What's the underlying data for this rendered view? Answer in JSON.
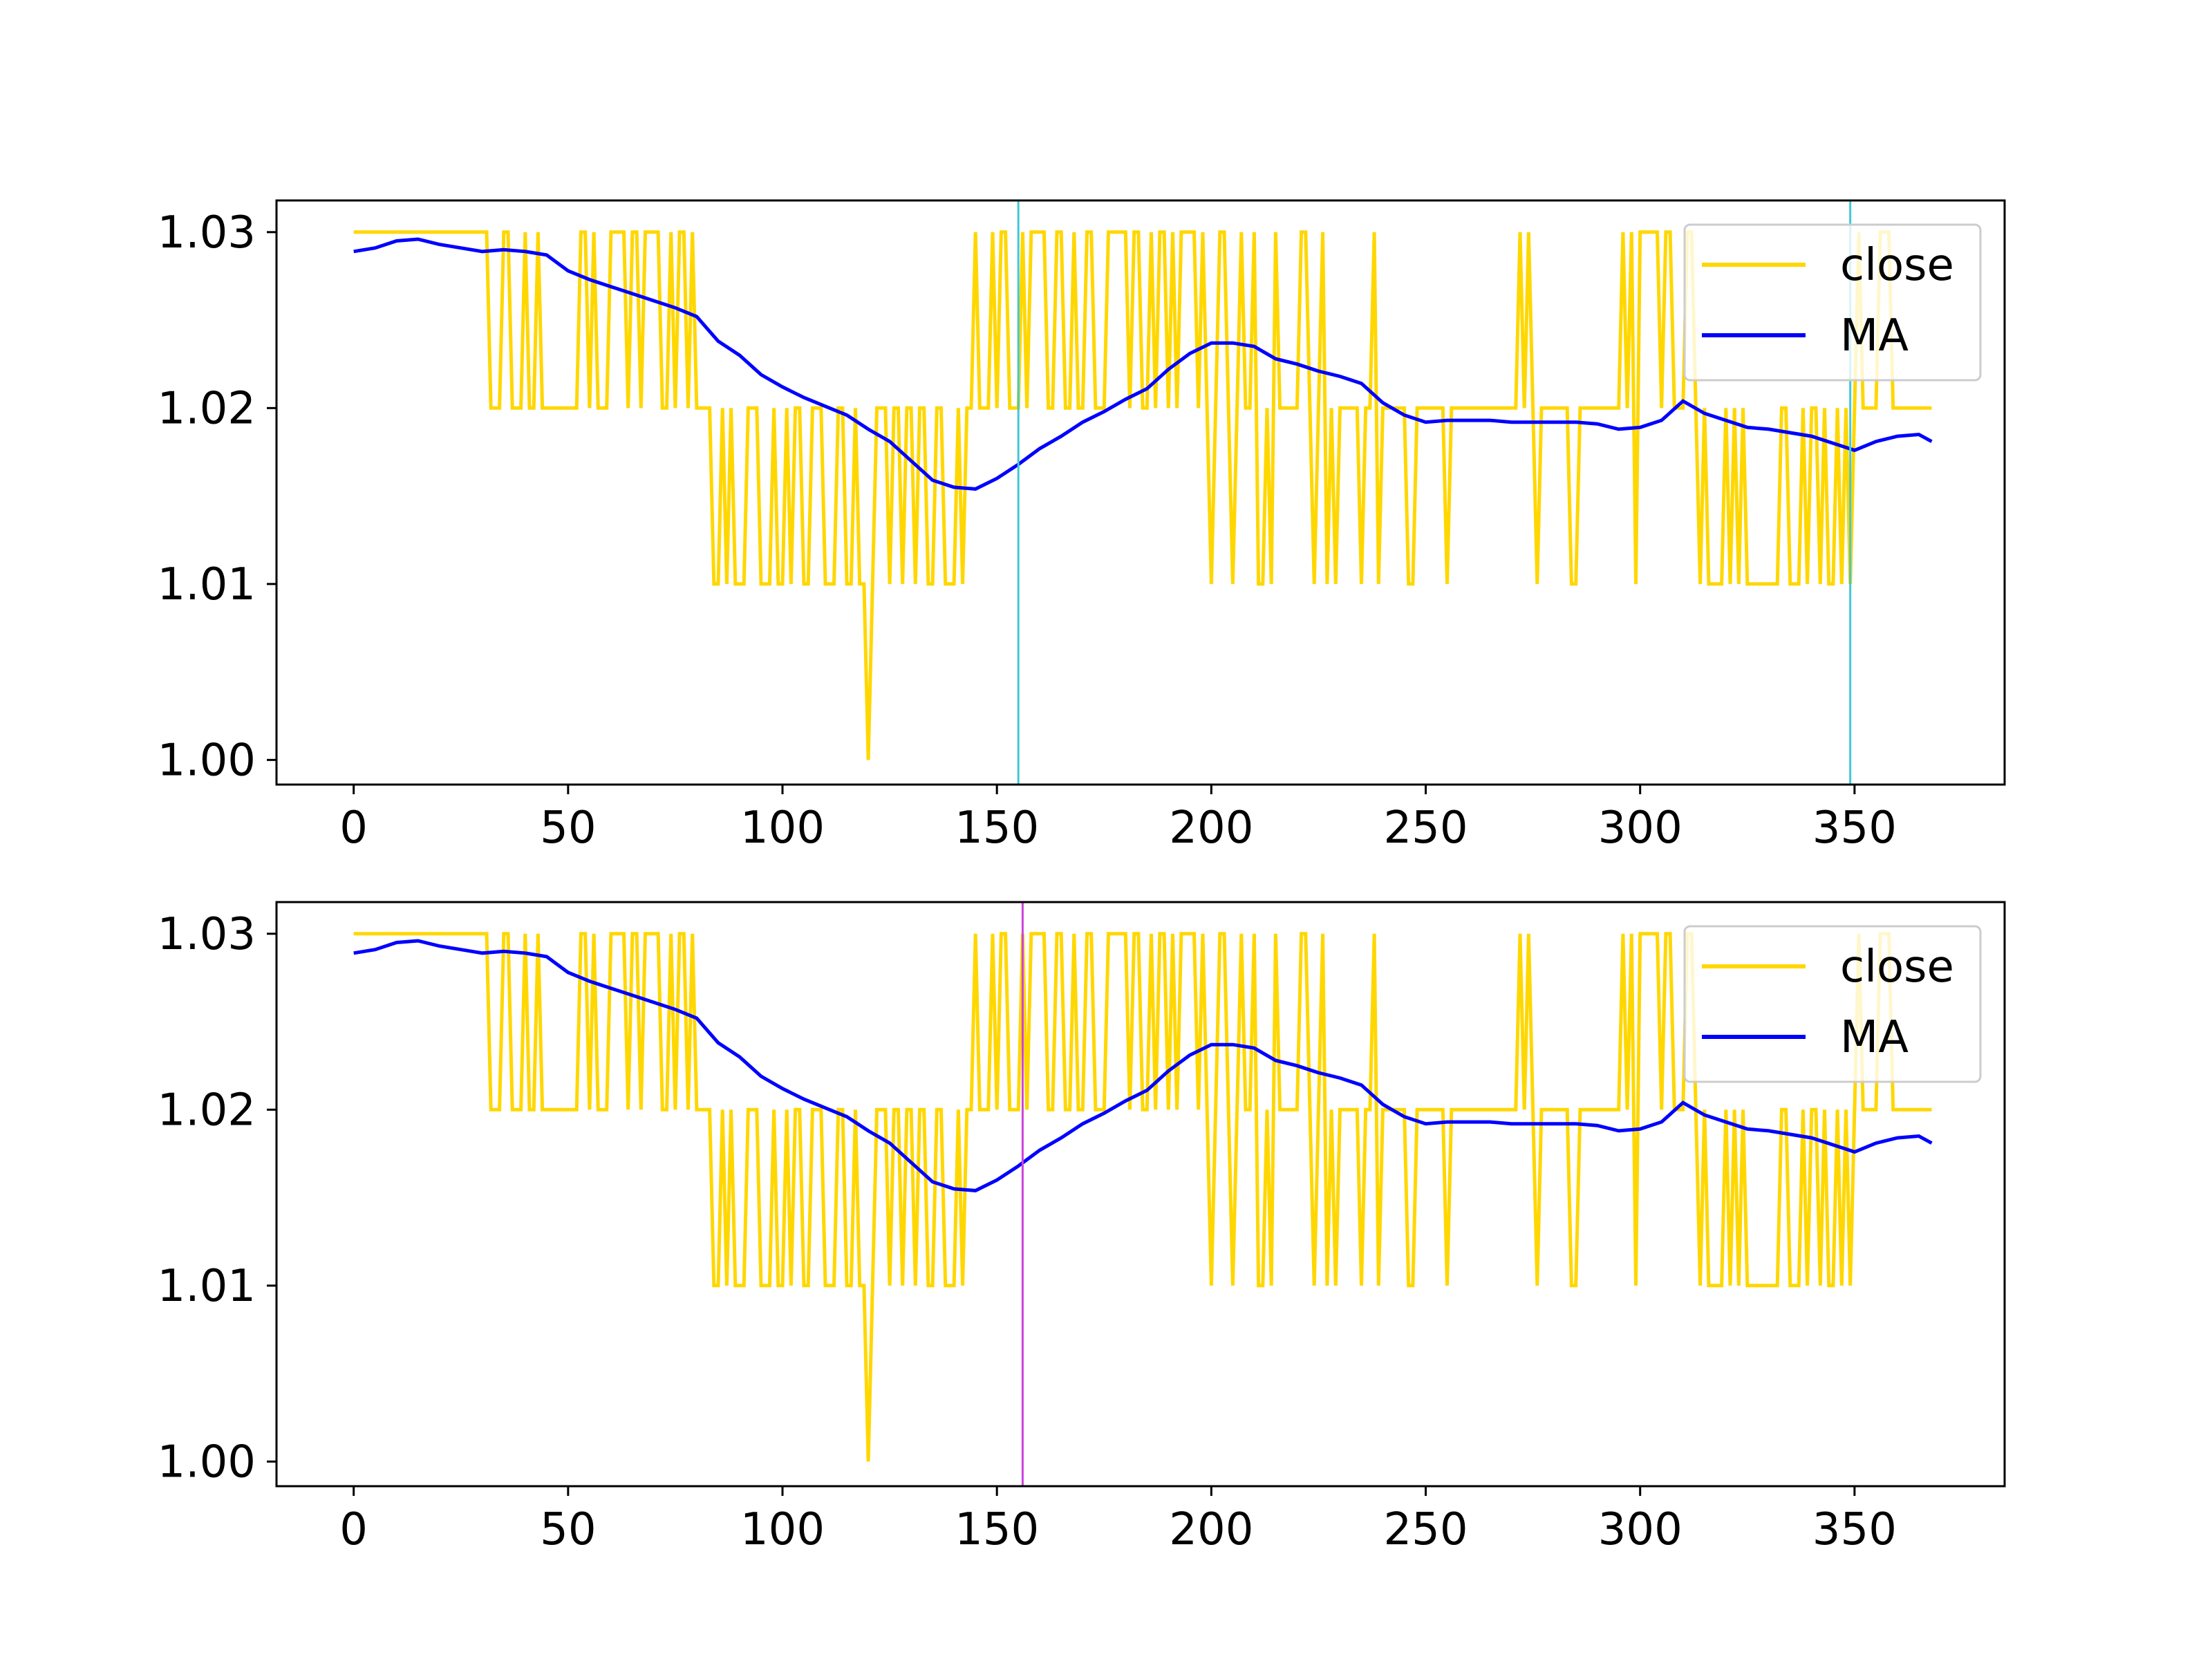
{
  "colors": {
    "close": "#FFD700",
    "ma": "#0000FF",
    "vline_top": "#3FC8D8",
    "vline_bottom": "#CC44DD",
    "axes": "#000000",
    "legend_border": "#CCCCCC"
  },
  "chart_data": [
    {
      "type": "line",
      "xlim": [
        -18,
        385
      ],
      "ylim": [
        0.9986,
        1.0318
      ],
      "xticks": [
        0,
        50,
        100,
        150,
        200,
        250,
        300,
        350
      ],
      "xtick_labels": [
        "0",
        "50",
        "100",
        "150",
        "200",
        "250",
        "300",
        "350"
      ],
      "yticks": [
        1.0,
        1.01,
        1.02,
        1.03
      ],
      "ytick_labels": [
        "1.00",
        "1.01",
        "1.02",
        "1.03"
      ],
      "legend": {
        "placement": "upper right",
        "entries": [
          "close",
          "MA"
        ]
      },
      "grid": false,
      "vlines": [
        {
          "x": 155,
          "color": "#3FC8D8"
        },
        {
          "x": 349,
          "color": "#3FC8D8"
        }
      ],
      "series": [
        {
          "name": "close",
          "color": "#FFD700",
          "x_start": 0,
          "x_end": 368,
          "levels": [
            1.0,
            1.01,
            1.02,
            1.03
          ]
        },
        {
          "name": "MA",
          "color": "#0000FF",
          "x": [
            0,
            5,
            10,
            15,
            20,
            25,
            30,
            35,
            40,
            45,
            50,
            55,
            60,
            65,
            70,
            75,
            80,
            85,
            90,
            95,
            100,
            105,
            110,
            115,
            120,
            125,
            130,
            135,
            140,
            145,
            150,
            155,
            160,
            165,
            170,
            175,
            180,
            185,
            190,
            195,
            200,
            205,
            210,
            215,
            220,
            225,
            230,
            235,
            240,
            245,
            250,
            255,
            260,
            265,
            270,
            275,
            280,
            285,
            290,
            295,
            300,
            305,
            310,
            315,
            320,
            325,
            330,
            335,
            340,
            345,
            350,
            355,
            360,
            365,
            368
          ],
          "y": [
            1.0289,
            1.0291,
            1.0295,
            1.0296,
            1.0293,
            1.0291,
            1.0289,
            1.029,
            1.0289,
            1.0287,
            1.0278,
            1.0273,
            1.0269,
            1.0265,
            1.0261,
            1.0257,
            1.0252,
            1.0238,
            1.023,
            1.0219,
            1.0212,
            1.0206,
            1.0201,
            1.0196,
            1.0188,
            1.0181,
            1.017,
            1.0159,
            1.0155,
            1.0154,
            1.016,
            1.0168,
            1.0177,
            1.0184,
            1.0192,
            1.0198,
            1.0205,
            1.0211,
            1.0222,
            1.0231,
            1.0237,
            1.0237,
            1.0235,
            1.0228,
            1.0225,
            1.0221,
            1.0218,
            1.0214,
            1.0203,
            1.0196,
            1.0192,
            1.0193,
            1.0193,
            1.0193,
            1.0192,
            1.0192,
            1.0192,
            1.0192,
            1.0191,
            1.0188,
            1.0189,
            1.0193,
            1.0204,
            1.0197,
            1.0193,
            1.0189,
            1.0188,
            1.0186,
            1.0184,
            1.018,
            1.0176,
            1.0181,
            1.0184,
            1.0185,
            1.0181
          ]
        }
      ]
    },
    {
      "type": "line",
      "xlim": [
        -18,
        385
      ],
      "ylim": [
        0.9986,
        1.0318
      ],
      "xticks": [
        0,
        50,
        100,
        150,
        200,
        250,
        300,
        350
      ],
      "xtick_labels": [
        "0",
        "50",
        "100",
        "150",
        "200",
        "250",
        "300",
        "350"
      ],
      "yticks": [
        1.0,
        1.01,
        1.02,
        1.03
      ],
      "ytick_labels": [
        "1.00",
        "1.01",
        "1.02",
        "1.03"
      ],
      "legend": {
        "placement": "upper right",
        "entries": [
          "close",
          "MA"
        ]
      },
      "grid": false,
      "vlines": [
        {
          "x": 156,
          "color": "#CC44DD"
        }
      ],
      "series": [
        {
          "name": "close",
          "color": "#FFD700",
          "x_start": 0,
          "x_end": 368,
          "levels": [
            1.0,
            1.01,
            1.02,
            1.03
          ]
        },
        {
          "name": "MA",
          "color": "#0000FF",
          "x": [
            0,
            5,
            10,
            15,
            20,
            25,
            30,
            35,
            40,
            45,
            50,
            55,
            60,
            65,
            70,
            75,
            80,
            85,
            90,
            95,
            100,
            105,
            110,
            115,
            120,
            125,
            130,
            135,
            140,
            145,
            150,
            155,
            160,
            165,
            170,
            175,
            180,
            185,
            190,
            195,
            200,
            205,
            210,
            215,
            220,
            225,
            230,
            235,
            240,
            245,
            250,
            255,
            260,
            265,
            270,
            275,
            280,
            285,
            290,
            295,
            300,
            305,
            310,
            315,
            320,
            325,
            330,
            335,
            340,
            345,
            350,
            355,
            360,
            365,
            368
          ],
          "y": [
            1.0289,
            1.0291,
            1.0295,
            1.0296,
            1.0293,
            1.0291,
            1.0289,
            1.029,
            1.0289,
            1.0287,
            1.0278,
            1.0273,
            1.0269,
            1.0265,
            1.0261,
            1.0257,
            1.0252,
            1.0238,
            1.023,
            1.0219,
            1.0212,
            1.0206,
            1.0201,
            1.0196,
            1.0188,
            1.0181,
            1.017,
            1.0159,
            1.0155,
            1.0154,
            1.016,
            1.0168,
            1.0177,
            1.0184,
            1.0192,
            1.0198,
            1.0205,
            1.0211,
            1.0222,
            1.0231,
            1.0237,
            1.0237,
            1.0235,
            1.0228,
            1.0225,
            1.0221,
            1.0218,
            1.0214,
            1.0203,
            1.0196,
            1.0192,
            1.0193,
            1.0193,
            1.0193,
            1.0192,
            1.0192,
            1.0192,
            1.0192,
            1.0191,
            1.0188,
            1.0189,
            1.0193,
            1.0204,
            1.0197,
            1.0193,
            1.0189,
            1.0188,
            1.0186,
            1.0184,
            1.018,
            1.0176,
            1.0181,
            1.0184,
            1.0185,
            1.0181
          ]
        }
      ]
    }
  ]
}
